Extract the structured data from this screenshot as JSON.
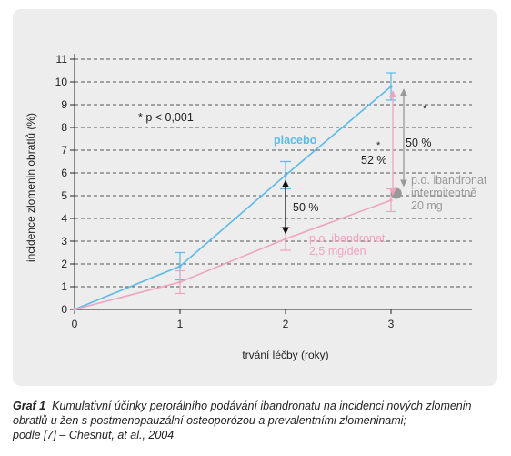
{
  "chart_data": {
    "type": "line",
    "x": [
      0,
      1,
      2,
      3
    ],
    "xlabel": "trvání léčby (roky)",
    "ylabel": "incidence zlomenin obratlů (%)",
    "xlim": [
      0,
      3
    ],
    "ylim": [
      0,
      11
    ],
    "xticks": [
      0,
      1,
      2,
      3
    ],
    "yticks": [
      0,
      1,
      2,
      3,
      4,
      5,
      6,
      7,
      8,
      9,
      10,
      11
    ],
    "grid": "horizontal dashed",
    "series": [
      {
        "name": "placebo",
        "color": "#5bbbe8",
        "values": [
          0,
          1.9,
          5.9,
          9.8
        ],
        "errors": [
          null,
          0.6,
          0.6,
          0.6
        ]
      },
      {
        "name": "p.o. ibandronat 2,5 mg/den",
        "name_line1": "p.o. ibandronat",
        "name_line2": "2,5 mg/den",
        "color": "#f0a3c0",
        "values": [
          0,
          1.2,
          3.1,
          4.8
        ],
        "errors": [
          null,
          0.5,
          0.5,
          0.5
        ]
      }
    ],
    "extra_point": {
      "name_line1": "p.o. ibandronat",
      "name_line2": "intermitentně",
      "name_line3": "20 mg",
      "x": 3.05,
      "y": 5.1,
      "color": "#999999"
    },
    "annotations": {
      "significance": "* p < 0,001",
      "year2_reduction": "50 %",
      "year3_pink_reduction": "52 %",
      "year3_grey_reduction": "50 %",
      "asterisk": "*"
    }
  },
  "caption": {
    "label": "Graf 1",
    "text": "Kumulativní účinky perorálního podávání ibandronatu na incidenci nových zlomenin obratlů u žen s postmenopauzální osteoporózou a prevalentními zlomeninami;",
    "source": "podle [7] – Chesnut, at al., 2004"
  },
  "colors": {
    "panel": "#ededed",
    "axis": "#222222",
    "grid": "#555555",
    "placebo": "#5bbbe8",
    "daily": "#f0a3c0",
    "intermittent": "#999999"
  }
}
